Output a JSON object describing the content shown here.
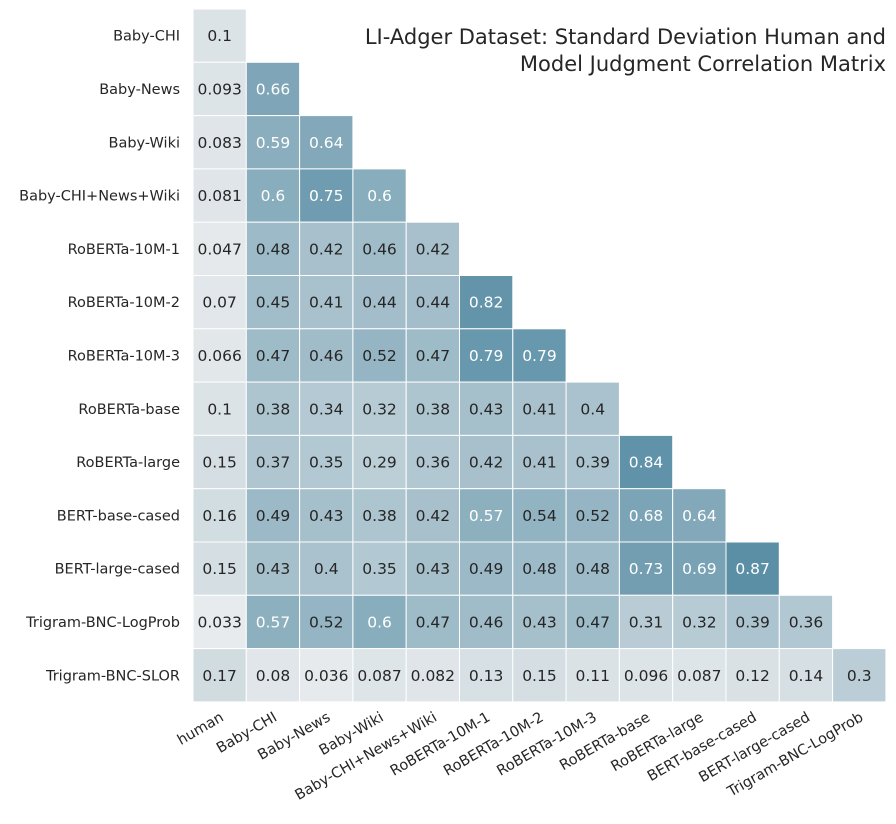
{
  "chart_data": {
    "type": "heatmap",
    "title_lines": [
      "LI-Adger Dataset: Standard Deviation Human and",
      "Model Judgment Correlation Matrix"
    ],
    "row_labels": [
      "Baby-CHI",
      "Baby-News",
      "Baby-Wiki",
      "Baby-CHI+News+Wiki",
      "RoBERTa-10M-1",
      "RoBERTa-10M-2",
      "RoBERTa-10M-3",
      "RoBERTa-base",
      "RoBERTa-large",
      "BERT-base-cased",
      "BERT-large-cased",
      "Trigram-BNC-LogProb",
      "Trigram-BNC-SLOR"
    ],
    "col_labels": [
      "human",
      "Baby-CHI",
      "Baby-News",
      "Baby-Wiki",
      "Baby-CHI+News+Wiki",
      "RoBERTa-10M-1",
      "RoBERTa-10M-2",
      "RoBERTa-10M-3",
      "RoBERTa-base",
      "RoBERTa-large",
      "BERT-base-cased",
      "BERT-large-cased",
      "Trigram-BNC-LogProb"
    ],
    "values": [
      [
        "0.1"
      ],
      [
        "0.093",
        "0.66"
      ],
      [
        "0.083",
        "0.59",
        "0.64"
      ],
      [
        "0.081",
        "0.6",
        "0.75",
        "0.6"
      ],
      [
        "0.047",
        "0.48",
        "0.42",
        "0.46",
        "0.42"
      ],
      [
        "0.07",
        "0.45",
        "0.41",
        "0.44",
        "0.44",
        "0.82"
      ],
      [
        "0.066",
        "0.47",
        "0.46",
        "0.52",
        "0.47",
        "0.79",
        "0.79"
      ],
      [
        "0.1",
        "0.38",
        "0.34",
        "0.32",
        "0.38",
        "0.43",
        "0.41",
        "0.4"
      ],
      [
        "0.15",
        "0.37",
        "0.35",
        "0.29",
        "0.36",
        "0.42",
        "0.41",
        "0.39",
        "0.84"
      ],
      [
        "0.16",
        "0.49",
        "0.43",
        "0.38",
        "0.42",
        "0.57",
        "0.54",
        "0.52",
        "0.68",
        "0.64"
      ],
      [
        "0.15",
        "0.43",
        "0.4",
        "0.35",
        "0.43",
        "0.49",
        "0.48",
        "0.48",
        "0.73",
        "0.69",
        "0.87"
      ],
      [
        "0.033",
        "0.57",
        "0.52",
        "0.6",
        "0.47",
        "0.46",
        "0.43",
        "0.47",
        "0.31",
        "0.32",
        "0.39",
        "0.36"
      ],
      [
        "0.17",
        "0.08",
        "0.036",
        "0.087",
        "0.082",
        "0.13",
        "0.15",
        "0.11",
        "0.096",
        "0.087",
        "0.12",
        "0.14",
        "0.3"
      ]
    ],
    "mask": "upper-triangle",
    "colorbar": false,
    "colormap": {
      "low": "#e8ebed",
      "high": "#5b8fa6",
      "vmin": 0.03,
      "vmax": 0.87,
      "text_dark": "#262626",
      "text_light": "#ffffff"
    }
  }
}
